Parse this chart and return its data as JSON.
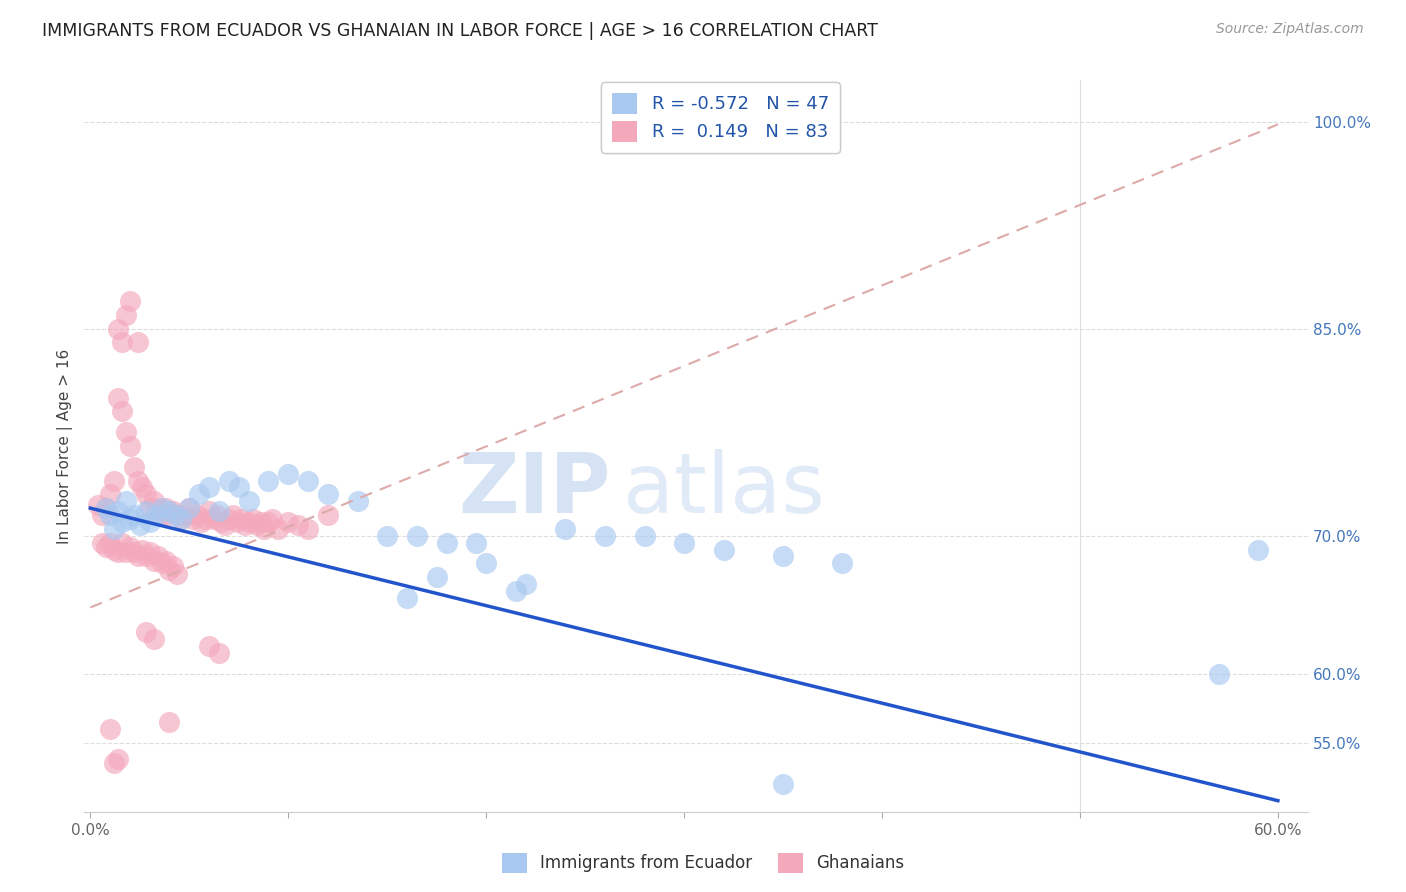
{
  "title": "IMMIGRANTS FROM ECUADOR VS GHANAIAN IN LABOR FORCE | AGE > 16 CORRELATION CHART",
  "source": "Source: ZipAtlas.com",
  "ylabel": "In Labor Force | Age > 16",
  "xlim": [
    -0.003,
    0.615
  ],
  "ylim": [
    0.5,
    1.03
  ],
  "R_blue": -0.572,
  "N_blue": 47,
  "R_pink": 0.149,
  "N_pink": 83,
  "blue_color": "#A8C8F0",
  "pink_color": "#F4A8BC",
  "blue_line_color": "#2255CC",
  "dashed_line_color": "#DDAAAA",
  "watermark_zip": "ZIP",
  "watermark_atlas": "atlas",
  "blue_line_x0": 0.0,
  "blue_line_y0": 0.72,
  "blue_line_x1": 0.6,
  "blue_line_y1": 0.508,
  "pink_line_x0": 0.0,
  "pink_line_y0": 0.648,
  "pink_line_x1": 0.6,
  "pink_line_y1": 0.998,
  "yticks": [
    0.55,
    0.6,
    0.7,
    0.85,
    1.0
  ],
  "ytick_labels": [
    "55.0%",
    "60.0%",
    "70.0%",
    "85.0%",
    "100.0%"
  ],
  "blue_x": [
    0.008,
    0.01,
    0.012,
    0.014,
    0.016,
    0.018,
    0.02,
    0.022,
    0.025,
    0.028,
    0.03,
    0.033,
    0.036,
    0.04,
    0.043,
    0.046,
    0.05,
    0.055,
    0.06,
    0.065,
    0.07,
    0.075,
    0.08,
    0.09,
    0.1,
    0.11,
    0.12,
    0.135,
    0.15,
    0.165,
    0.18,
    0.2,
    0.22,
    0.24,
    0.26,
    0.28,
    0.3,
    0.32,
    0.35,
    0.38,
    0.16,
    0.175,
    0.195,
    0.215,
    0.35,
    0.57,
    0.59
  ],
  "blue_y": [
    0.72,
    0.715,
    0.705,
    0.718,
    0.71,
    0.725,
    0.712,
    0.715,
    0.708,
    0.718,
    0.71,
    0.715,
    0.72,
    0.718,
    0.715,
    0.712,
    0.72,
    0.73,
    0.735,
    0.718,
    0.74,
    0.735,
    0.725,
    0.74,
    0.745,
    0.74,
    0.73,
    0.725,
    0.7,
    0.7,
    0.695,
    0.68,
    0.665,
    0.705,
    0.7,
    0.7,
    0.695,
    0.69,
    0.685,
    0.68,
    0.655,
    0.67,
    0.695,
    0.66,
    0.52,
    0.6,
    0.69
  ],
  "pink_x": [
    0.004,
    0.006,
    0.008,
    0.01,
    0.012,
    0.014,
    0.016,
    0.018,
    0.02,
    0.022,
    0.024,
    0.026,
    0.028,
    0.03,
    0.032,
    0.034,
    0.036,
    0.038,
    0.04,
    0.042,
    0.044,
    0.046,
    0.048,
    0.05,
    0.052,
    0.054,
    0.056,
    0.058,
    0.06,
    0.062,
    0.064,
    0.066,
    0.068,
    0.07,
    0.072,
    0.074,
    0.076,
    0.078,
    0.08,
    0.082,
    0.084,
    0.086,
    0.088,
    0.09,
    0.092,
    0.095,
    0.1,
    0.105,
    0.11,
    0.12,
    0.006,
    0.008,
    0.01,
    0.012,
    0.014,
    0.016,
    0.018,
    0.02,
    0.022,
    0.024,
    0.026,
    0.028,
    0.03,
    0.032,
    0.034,
    0.036,
    0.038,
    0.04,
    0.042,
    0.044,
    0.014,
    0.016,
    0.018,
    0.02,
    0.024,
    0.028,
    0.032,
    0.06,
    0.065,
    0.04,
    0.01,
    0.012,
    0.014
  ],
  "pink_y": [
    0.722,
    0.715,
    0.72,
    0.73,
    0.74,
    0.8,
    0.79,
    0.775,
    0.765,
    0.75,
    0.74,
    0.735,
    0.73,
    0.72,
    0.725,
    0.72,
    0.715,
    0.72,
    0.715,
    0.718,
    0.715,
    0.712,
    0.715,
    0.72,
    0.712,
    0.715,
    0.71,
    0.712,
    0.718,
    0.712,
    0.715,
    0.71,
    0.708,
    0.712,
    0.715,
    0.71,
    0.712,
    0.708,
    0.71,
    0.712,
    0.708,
    0.71,
    0.705,
    0.71,
    0.712,
    0.705,
    0.71,
    0.708,
    0.705,
    0.715,
    0.695,
    0.692,
    0.695,
    0.69,
    0.688,
    0.695,
    0.688,
    0.692,
    0.688,
    0.685,
    0.69,
    0.685,
    0.688,
    0.682,
    0.685,
    0.68,
    0.682,
    0.675,
    0.678,
    0.672,
    0.85,
    0.84,
    0.86,
    0.87,
    0.84,
    0.63,
    0.625,
    0.62,
    0.615,
    0.565,
    0.56,
    0.535,
    0.538
  ]
}
